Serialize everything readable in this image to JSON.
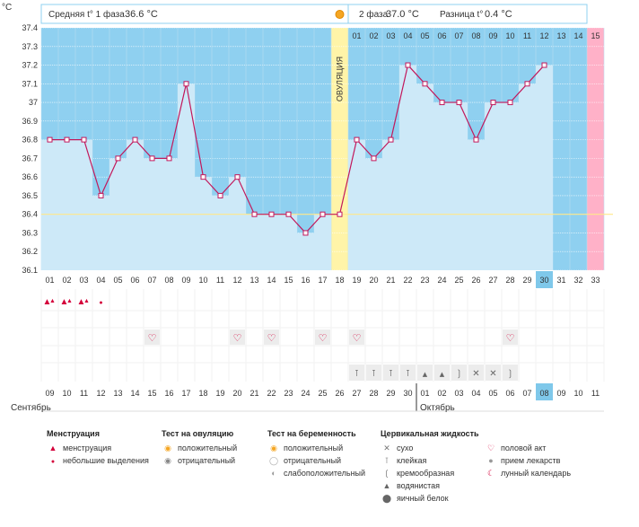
{
  "header": {
    "phase1_label": "Средняя t° 1 фаза",
    "phase1_value": "36.6 °C",
    "phase2_label": "2 фаза",
    "phase2_value": "37.0 °C",
    "diff_label": "Разница t°",
    "diff_value": "0.4 °C",
    "unit": "°C",
    "ovulation_label": "ОВУЛЯЦИЯ"
  },
  "colors": {
    "bg_light": "#ccebfb",
    "bg_dark": "#8fd0f0",
    "bar_fill": "#cde9f8",
    "line": "#c2185b",
    "ovulation": "#fff4a8",
    "today": "#7fc8ea",
    "menses_day": "#ffb1c8",
    "red_text": "#d4003a"
  },
  "chart_data": {
    "type": "line",
    "title": "",
    "ylabel": "°C",
    "ylim": [
      36.1,
      37.4
    ],
    "yticks": [
      "37.4",
      "37.3",
      "37.2",
      "37.1",
      "37",
      "36.9",
      "36.8",
      "36.7",
      "36.6",
      "36.5",
      "36.4",
      "36.3",
      "36.2",
      "36.1"
    ],
    "cycle_days": [
      "01",
      "02",
      "03",
      "04",
      "05",
      "06",
      "07",
      "08",
      "09",
      "10",
      "11",
      "12",
      "13",
      "14",
      "15",
      "16",
      "17",
      "18",
      "19",
      "20",
      "21",
      "22",
      "23",
      "24",
      "25",
      "26",
      "27",
      "28",
      "29",
      "30",
      "31",
      "32",
      "33"
    ],
    "temperatures": [
      36.8,
      36.8,
      36.8,
      36.5,
      36.7,
      36.8,
      36.7,
      36.7,
      37.1,
      36.6,
      36.5,
      36.6,
      36.4,
      36.4,
      36.4,
      36.3,
      36.4,
      36.4,
      36.8,
      36.7,
      36.8,
      37.2,
      37.1,
      37.0,
      37.0,
      36.8,
      37.0,
      37.0,
      37.1,
      37.2,
      null,
      null,
      null
    ],
    "coverline": 36.4,
    "ovulation_day": "18",
    "post_ovulation_days": [
      "01",
      "02",
      "03",
      "04",
      "05",
      "06",
      "07",
      "08",
      "09",
      "10",
      "11",
      "12",
      "13",
      "14",
      "15"
    ],
    "today_cycle_day": "30",
    "calendar_dates": [
      "09",
      "10",
      "11",
      "12",
      "13",
      "14",
      "15",
      "16",
      "17",
      "18",
      "19",
      "20",
      "21",
      "22",
      "23",
      "24",
      "25",
      "26",
      "27",
      "28",
      "29",
      "30",
      "01",
      "02",
      "03",
      "04",
      "05",
      "06",
      "07",
      "08",
      "09",
      "10",
      "11"
    ],
    "weekend_dates_idx": [
      1,
      2,
      8,
      9,
      15,
      16,
      22,
      23,
      29,
      30
    ],
    "today_date": "08",
    "month_1": "Сентябрь",
    "month_2": "Октябрь",
    "menstruation_days": [
      {
        "day": "01",
        "kind": "heavy"
      },
      {
        "day": "02",
        "kind": "heavy"
      },
      {
        "day": "03",
        "kind": "heavy"
      },
      {
        "day": "04",
        "kind": "light"
      }
    ],
    "intercourse_days": [
      "07",
      "12",
      "14",
      "17",
      "19",
      "28"
    ],
    "fluid": [
      {
        "day": "19",
        "kind": "sticky"
      },
      {
        "day": "20",
        "kind": "sticky"
      },
      {
        "day": "21",
        "kind": "sticky"
      },
      {
        "day": "22",
        "kind": "sticky"
      },
      {
        "day": "23",
        "kind": "watery"
      },
      {
        "day": "24",
        "kind": "watery"
      },
      {
        "day": "25",
        "kind": "creamy"
      },
      {
        "day": "26",
        "kind": "dry"
      },
      {
        "day": "27",
        "kind": "dry"
      },
      {
        "day": "28",
        "kind": "creamy"
      }
    ]
  },
  "legend": {
    "menstruation": {
      "title": "Менструация",
      "items": [
        {
          "icon": "menstruation-icon",
          "label": "менструация"
        },
        {
          "icon": "spotting-icon",
          "label": "небольшие выделения"
        }
      ]
    },
    "ovulation_test": {
      "title": "Тест на овуляцию",
      "items": [
        {
          "icon": "positive-icon",
          "label": "положительный"
        },
        {
          "icon": "negative-icon",
          "label": "отрицательный"
        }
      ]
    },
    "pregnancy_test": {
      "title": "Тест на беременность",
      "items": [
        {
          "icon": "positive-icon",
          "label": "положительный"
        },
        {
          "icon": "negative-icon",
          "label": "отрицательный"
        },
        {
          "icon": "weak-positive-icon",
          "label": "слабоположительный"
        }
      ]
    },
    "cervical_fluid": {
      "title": "Цервикальная жидкость",
      "items": [
        {
          "icon": "dry-icon",
          "label": "сухо"
        },
        {
          "icon": "sticky-icon",
          "label": "клейкая"
        },
        {
          "icon": "creamy-icon",
          "label": "кремообразная"
        },
        {
          "icon": "watery-icon",
          "label": "водянистая"
        },
        {
          "icon": "egg-white-icon",
          "label": "яичный белок"
        }
      ]
    },
    "other": {
      "items": [
        {
          "icon": "heart-icon",
          "label": "половой акт"
        },
        {
          "icon": "pill-icon",
          "label": "прием лекарств"
        },
        {
          "icon": "moon-icon",
          "label": "лунный календарь"
        }
      ]
    }
  }
}
